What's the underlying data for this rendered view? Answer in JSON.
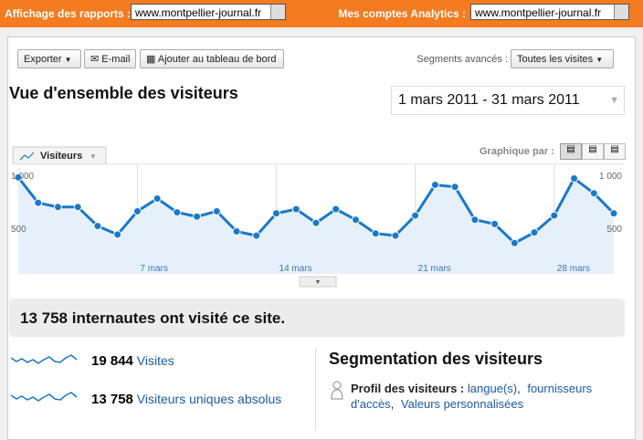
{
  "top_bar": {
    "report_label": "Affichage des rapports :",
    "report_site": "www.montpellier-journal.fr",
    "accounts_label": "Mes comptes Analytics :",
    "accounts_site": "www.montpellier-journal.fr"
  },
  "toolbar": {
    "buttons": [
      "Exporter",
      "E-mail",
      "Ajouter au tableau de bord"
    ],
    "segments_label": "Segments avancés :",
    "segments_value": "Toutes les visites"
  },
  "header": {
    "title": "Vue d'ensemble des visiteurs",
    "date_range": "1 mars 2011 - 31 mars 2011",
    "graph_by": "Graphique par :"
  },
  "chart_data": {
    "type": "area",
    "categories": [
      null,
      null,
      null,
      null,
      null,
      null,
      "7 mars",
      null,
      null,
      null,
      null,
      null,
      null,
      "14 mars",
      null,
      null,
      null,
      null,
      null,
      null,
      "21 mars",
      null,
      null,
      null,
      null,
      null,
      null,
      "28 mars",
      null,
      null,
      null
    ],
    "series": [
      {
        "name": "Visiteurs",
        "color": "#1a78c9",
        "values": [
          980,
          740,
          700,
          700,
          520,
          440,
          660,
          780,
          650,
          610,
          660,
          470,
          430,
          640,
          680,
          550,
          680,
          580,
          450,
          430,
          620,
          910,
          890,
          580,
          540,
          360,
          460,
          620,
          970,
          830,
          640
        ]
      }
    ],
    "area_color": "#e6f0fa",
    "ylim": [
      0,
      1000
    ],
    "yticks": [
      500,
      {
        "value": 1000,
        "label": "1 000"
      }
    ]
  },
  "summary": "13 758 internautes ont visité ce site.",
  "metrics": [
    {
      "value": "19 844",
      "label": "Visites"
    },
    {
      "value": "13 758",
      "label": "Visiteurs uniques absolus"
    }
  ],
  "segmentation": {
    "title": "Segmentation des visiteurs",
    "profile_label": "Profil des visiteurs :",
    "links": [
      "langue(s)",
      "fournisseurs d'accès",
      "Valeurs personnalisées"
    ]
  }
}
